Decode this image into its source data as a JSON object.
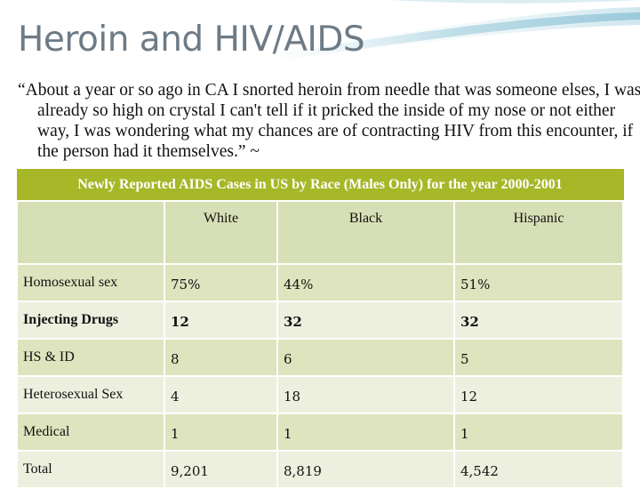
{
  "slide": {
    "title": "Heroin and HIV/AIDS",
    "quote": "“About a year or so ago in CA I snorted heroin from needle that was someone elses, I was already so high on crystal I can't tell if it pricked the inside of my nose or not either way, I was wondering what my chances are of contracting HIV from this encounter, if the person had it themselves.” ~",
    "colors": {
      "accent": "#a6b727",
      "title": "#6d7b86",
      "row_dark": "#dde4be",
      "row_light": "#edf0de"
    }
  },
  "table": {
    "caption": "Newly Reported AIDS Cases in US by Race (Males Only) for  the year 2000-2001",
    "columns": [
      "",
      "White",
      "Black",
      "Hispanic"
    ],
    "rows": [
      {
        "label": "Homosexual sex",
        "values": [
          "75%",
          "44%",
          "51%"
        ]
      },
      {
        "label": "Injecting Drugs",
        "values": [
          "12",
          "32",
          "32"
        ]
      },
      {
        "label": "HS & ID",
        "values": [
          "8",
          "6",
          "5"
        ]
      },
      {
        "label": "Heterosexual Sex",
        "values": [
          "4",
          "18",
          "12"
        ]
      },
      {
        "label": "Medical",
        "values": [
          "1",
          "1",
          "1"
        ]
      },
      {
        "label": "Total",
        "values": [
          "9,201",
          "8,819",
          "4,542"
        ]
      }
    ]
  }
}
